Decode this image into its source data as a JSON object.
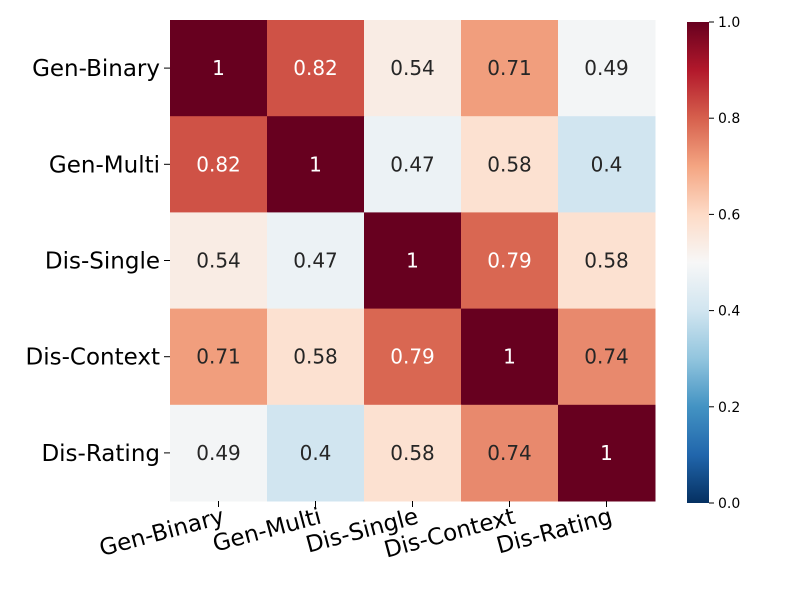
{
  "chart_data": {
    "type": "heatmap",
    "rows": [
      "Gen-Binary",
      "Gen-Multi",
      "Dis-Single",
      "Dis-Context",
      "Dis-Rating"
    ],
    "columns": [
      "Gen-Binary",
      "Gen-Multi",
      "Dis-Single",
      "Dis-Context",
      "Dis-Rating"
    ],
    "values": [
      [
        1,
        0.82,
        0.54,
        0.71,
        0.49
      ],
      [
        0.82,
        1,
        0.47,
        0.58,
        0.4
      ],
      [
        0.54,
        0.47,
        1,
        0.79,
        0.58
      ],
      [
        0.71,
        0.58,
        0.79,
        1,
        0.74
      ],
      [
        0.49,
        0.4,
        0.58,
        0.74,
        1
      ]
    ],
    "colormap": "RdBu_r",
    "colorbar": {
      "vmin": 0.0,
      "vmax": 1.0,
      "ticks": [
        0.0,
        0.2,
        0.4,
        0.6,
        0.8,
        1.0
      ],
      "tick_labels": [
        "0.0",
        "0.2",
        "0.4",
        "0.6",
        "0.8",
        "1.0"
      ]
    },
    "title": "",
    "xlabel": "",
    "ylabel": ""
  }
}
